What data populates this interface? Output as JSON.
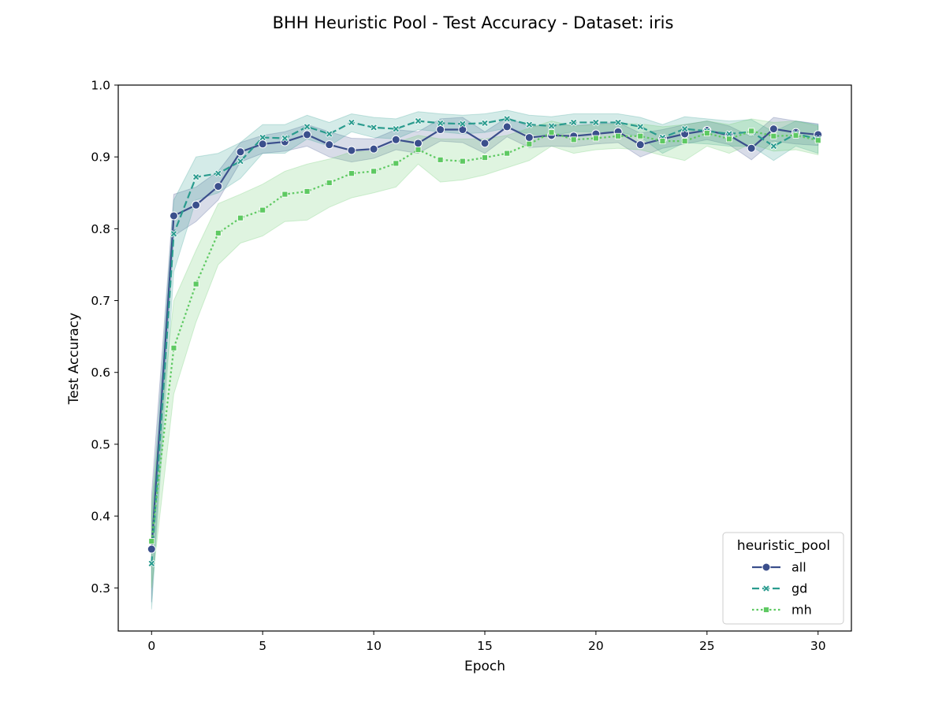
{
  "chart_data": {
    "type": "line",
    "title": "BHH Heuristic Pool - Test Accuracy - Dataset: iris",
    "xlabel": "Epoch",
    "ylabel": "Test Accuracy",
    "xlim": [
      -1.5,
      31.5
    ],
    "ylim": [
      0.24,
      1.0
    ],
    "xticks": [
      0,
      5,
      10,
      15,
      20,
      25,
      30
    ],
    "yticks": [
      0.3,
      0.4,
      0.5,
      0.6,
      0.7,
      0.8,
      0.9,
      1.0
    ],
    "xtick_labels": [
      "0",
      "5",
      "10",
      "15",
      "20",
      "25",
      "30"
    ],
    "ytick_labels": [
      "0.3",
      "0.4",
      "0.5",
      "0.6",
      "0.7",
      "0.8",
      "0.9",
      "1.0"
    ],
    "grid": false,
    "legend": {
      "title": "heuristic_pool",
      "placement": "lower-right"
    },
    "x": [
      0,
      1,
      2,
      3,
      4,
      5,
      6,
      7,
      8,
      9,
      10,
      11,
      12,
      13,
      14,
      15,
      16,
      17,
      18,
      19,
      20,
      21,
      22,
      23,
      24,
      25,
      26,
      27,
      28,
      29,
      30
    ],
    "series": [
      {
        "name": "all",
        "color": "#3b4f8c",
        "marker": "circle",
        "dash": "solid",
        "values": [
          0.354,
          0.818,
          0.833,
          0.859,
          0.907,
          0.918,
          0.921,
          0.931,
          0.917,
          0.909,
          0.911,
          0.924,
          0.919,
          0.938,
          0.938,
          0.919,
          0.942,
          0.927,
          0.93,
          0.929,
          0.932,
          0.935,
          0.917,
          0.925,
          0.932,
          0.937,
          0.93,
          0.912,
          0.939,
          0.934,
          0.931
        ],
        "lower": [
          0.28,
          0.79,
          0.81,
          0.84,
          0.893,
          0.905,
          0.908,
          0.915,
          0.9,
          0.893,
          0.898,
          0.91,
          0.905,
          0.922,
          0.92,
          0.905,
          0.928,
          0.913,
          0.915,
          0.914,
          0.918,
          0.92,
          0.9,
          0.912,
          0.918,
          0.924,
          0.917,
          0.896,
          0.922,
          0.918,
          0.916
        ],
        "upper": [
          0.43,
          0.848,
          0.858,
          0.88,
          0.92,
          0.93,
          0.935,
          0.945,
          0.935,
          0.926,
          0.925,
          0.938,
          0.935,
          0.953,
          0.955,
          0.935,
          0.955,
          0.942,
          0.945,
          0.944,
          0.946,
          0.948,
          0.933,
          0.938,
          0.945,
          0.95,
          0.943,
          0.928,
          0.955,
          0.95,
          0.946
        ]
      },
      {
        "name": "gd",
        "color": "#2a9b8e",
        "marker": "x",
        "dash": "dashed",
        "values": [
          0.334,
          0.793,
          0.872,
          0.877,
          0.894,
          0.927,
          0.926,
          0.942,
          0.932,
          0.948,
          0.941,
          0.939,
          0.95,
          0.947,
          0.946,
          0.947,
          0.953,
          0.945,
          0.943,
          0.948,
          0.948,
          0.948,
          0.942,
          0.927,
          0.939,
          0.936,
          0.932,
          0.935,
          0.915,
          0.932,
          0.925
        ],
        "lower": [
          0.27,
          0.74,
          0.84,
          0.85,
          0.87,
          0.905,
          0.905,
          0.925,
          0.915,
          0.935,
          0.927,
          0.925,
          0.938,
          0.935,
          0.932,
          0.934,
          0.94,
          0.932,
          0.93,
          0.935,
          0.935,
          0.935,
          0.928,
          0.905,
          0.92,
          0.918,
          0.915,
          0.915,
          0.895,
          0.915,
          0.905
        ],
        "upper": [
          0.4,
          0.84,
          0.9,
          0.905,
          0.92,
          0.945,
          0.945,
          0.958,
          0.948,
          0.96,
          0.955,
          0.953,
          0.963,
          0.96,
          0.958,
          0.96,
          0.965,
          0.958,
          0.956,
          0.96,
          0.96,
          0.96,
          0.955,
          0.945,
          0.956,
          0.953,
          0.95,
          0.952,
          0.935,
          0.95,
          0.945
        ]
      },
      {
        "name": "mh",
        "color": "#5ec962",
        "marker": "square",
        "dash": "dotted",
        "values": [
          0.365,
          0.634,
          0.723,
          0.794,
          0.815,
          0.826,
          0.848,
          0.852,
          0.864,
          0.877,
          0.88,
          0.891,
          0.91,
          0.896,
          0.894,
          0.899,
          0.905,
          0.918,
          0.934,
          0.924,
          0.926,
          0.929,
          0.929,
          0.922,
          0.922,
          0.933,
          0.925,
          0.936,
          0.929,
          0.93,
          0.923
        ],
        "lower": [
          0.3,
          0.57,
          0.67,
          0.75,
          0.78,
          0.79,
          0.81,
          0.812,
          0.83,
          0.843,
          0.85,
          0.858,
          0.89,
          0.865,
          0.868,
          0.875,
          0.885,
          0.895,
          0.915,
          0.905,
          0.91,
          0.912,
          0.91,
          0.902,
          0.895,
          0.915,
          0.905,
          0.918,
          0.908,
          0.91,
          0.903
        ],
        "upper": [
          0.42,
          0.7,
          0.77,
          0.835,
          0.848,
          0.862,
          0.88,
          0.89,
          0.897,
          0.907,
          0.908,
          0.92,
          0.93,
          0.925,
          0.925,
          0.925,
          0.93,
          0.94,
          0.95,
          0.943,
          0.945,
          0.946,
          0.946,
          0.942,
          0.945,
          0.95,
          0.945,
          0.953,
          0.948,
          0.95,
          0.943
        ]
      }
    ]
  }
}
